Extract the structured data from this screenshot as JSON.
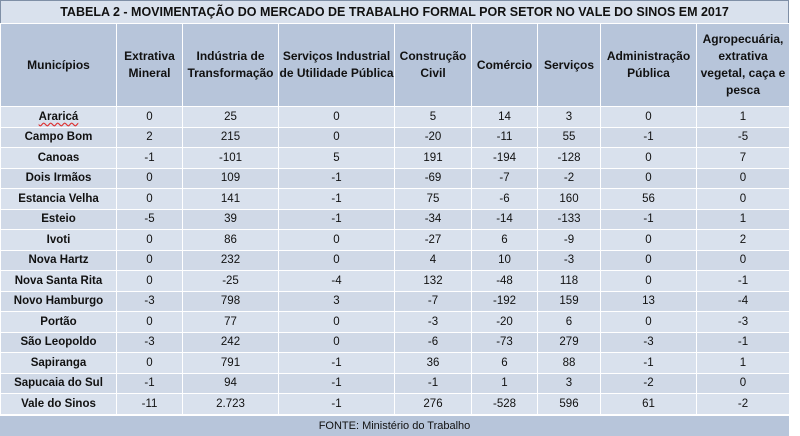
{
  "title": "TABELA 2 - MOVIMENTAÇÃO DO MERCADO DE TRABALHO FORMAL POR SETOR NO VALE DO SINOS EM 2017",
  "headers": [
    "Municípios",
    "Extrativa Mineral",
    "Indústria de Transformação",
    "Serviços Industrial de Utilidade Pública",
    "Construção Civil",
    "Comércio",
    "Serviços",
    "Administração Pública",
    "Agropecuária, extrativa vegetal, caça e pesca"
  ],
  "rows": [
    [
      "Araricá",
      "0",
      "25",
      "0",
      "5",
      "14",
      "3",
      "0",
      "1"
    ],
    [
      "Campo Bom",
      "2",
      "215",
      "0",
      "-20",
      "-11",
      "55",
      "-1",
      "-5"
    ],
    [
      "Canoas",
      "-1",
      "-101",
      "5",
      "191",
      "-194",
      "-128",
      "0",
      "7"
    ],
    [
      "Dois Irmãos",
      "0",
      "109",
      "-1",
      "-69",
      "-7",
      "-2",
      "0",
      "0"
    ],
    [
      "Estancia Velha",
      "0",
      "141",
      "-1",
      "75",
      "-6",
      "160",
      "56",
      "0"
    ],
    [
      "Esteio",
      "-5",
      "39",
      "-1",
      "-34",
      "-14",
      "-133",
      "-1",
      "1"
    ],
    [
      "Ivoti",
      "0",
      "86",
      "0",
      "-27",
      "6",
      "-9",
      "0",
      "2"
    ],
    [
      "Nova Hartz",
      "0",
      "232",
      "0",
      "4",
      "10",
      "-3",
      "0",
      "0"
    ],
    [
      "Nova Santa Rita",
      "0",
      "-25",
      "-4",
      "132",
      "-48",
      "118",
      "0",
      "-1"
    ],
    [
      "Novo Hamburgo",
      "-3",
      "798",
      "3",
      "-7",
      "-192",
      "159",
      "13",
      "-4"
    ],
    [
      "Portão",
      "0",
      "77",
      "0",
      "-3",
      "-20",
      "6",
      "0",
      "-3"
    ],
    [
      "São Leopoldo",
      "-3",
      "242",
      "0",
      "-6",
      "-73",
      "279",
      "-3",
      "-1"
    ],
    [
      "Sapiranga",
      "0",
      "791",
      "-1",
      "36",
      "6",
      "88",
      "-1",
      "1"
    ],
    [
      "Sapucaia do Sul",
      "-1",
      "94",
      "-1",
      "-1",
      "1",
      "3",
      "-2",
      "0"
    ],
    [
      "Vale do Sinos",
      "-11",
      "2.723",
      "-1",
      "276",
      "-528",
      "596",
      "61",
      "-2"
    ]
  ],
  "footer": "FONTE: Ministério do Trabalho"
}
